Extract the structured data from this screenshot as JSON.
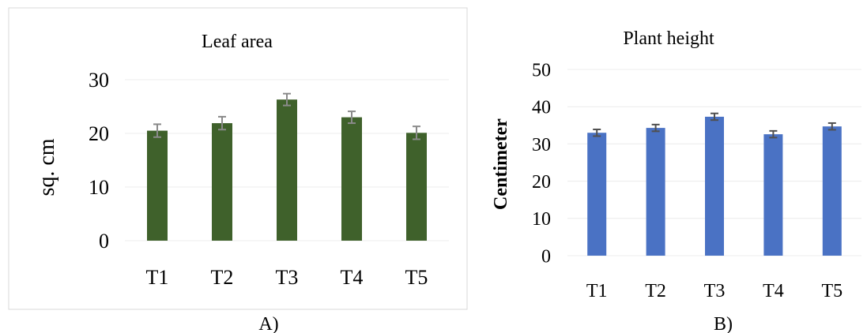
{
  "colors": {
    "chart_a_bar": "#3f612b",
    "chart_b_bar": "#4a72c4",
    "gridline": "#ececec",
    "error_bar_a": "#8a8a8a",
    "error_bar_b": "#505050",
    "frame": "#d9d9d9"
  },
  "chart_data": [
    {
      "type": "bar",
      "title": "Leaf area",
      "xlabel": "",
      "ylabel": "sq. cm",
      "caption": "A)",
      "categories": [
        "T1",
        "T2",
        "T3",
        "T4",
        "T5"
      ],
      "values": [
        20.5,
        21.9,
        26.3,
        23.0,
        20.1
      ],
      "errors": [
        1.2,
        1.2,
        1.1,
        1.1,
        1.2
      ],
      "ylim": [
        0,
        30
      ],
      "yticks": [
        "0",
        "10",
        "20",
        "30"
      ],
      "grid": true,
      "legend": "none"
    },
    {
      "type": "bar",
      "title": "Plant height",
      "xlabel": "",
      "ylabel": "Centimeter",
      "caption": "B)",
      "categories": [
        "T1",
        "T2",
        "T3",
        "T4",
        "T5"
      ],
      "values": [
        33.0,
        34.3,
        37.3,
        32.6,
        34.7
      ],
      "errors": [
        0.9,
        0.9,
        0.9,
        0.9,
        0.9
      ],
      "ylim": [
        0,
        50
      ],
      "yticks": [
        "0",
        "10",
        "20",
        "30",
        "40",
        "50"
      ],
      "grid": true,
      "legend": "none"
    }
  ]
}
